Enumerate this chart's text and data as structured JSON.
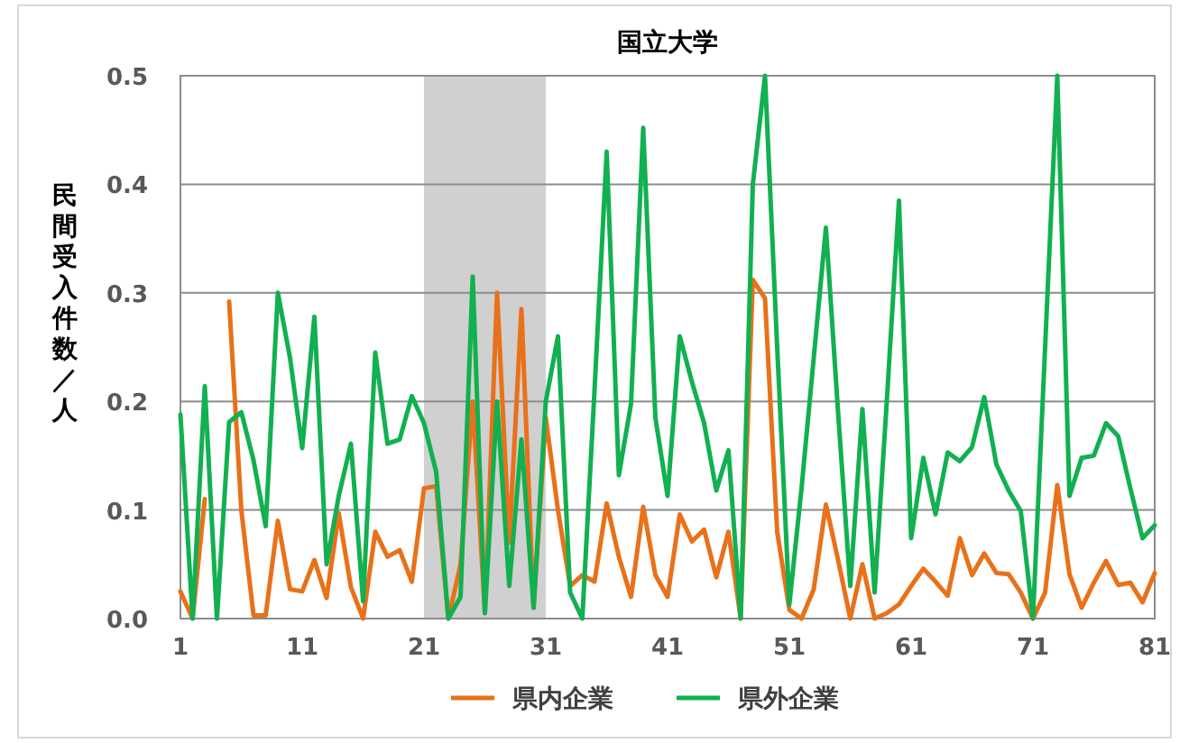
{
  "chart_data": {
    "type": "line",
    "title": "国立大学",
    "ylabel": "民間受入件数／人",
    "x": [
      1,
      2,
      3,
      4,
      5,
      6,
      7,
      8,
      9,
      10,
      11,
      12,
      13,
      14,
      15,
      16,
      17,
      18,
      19,
      20,
      21,
      22,
      23,
      24,
      25,
      26,
      27,
      28,
      29,
      30,
      31,
      32,
      33,
      34,
      35,
      36,
      37,
      38,
      39,
      40,
      41,
      42,
      43,
      44,
      45,
      46,
      47,
      48,
      49,
      50,
      51,
      52,
      53,
      54,
      55,
      56,
      57,
      58,
      59,
      60,
      61,
      62,
      63,
      64,
      65,
      66,
      67,
      68,
      69,
      70,
      71,
      72,
      73,
      74,
      75,
      76,
      77,
      78,
      79,
      80,
      81
    ],
    "series": [
      {
        "name": "県内企業",
        "color": "#e8711a",
        "values": [
          0.025,
          0,
          0.11,
          null,
          0.292,
          0.1,
          0.003,
          0.003,
          0.09,
          0.027,
          0.025,
          0.054,
          0.019,
          0.097,
          0.029,
          0,
          0.08,
          0.057,
          0.063,
          0.034,
          0.12,
          0.122,
          0,
          0.05,
          0.2,
          0.005,
          0.3,
          0.07,
          0.285,
          0.01,
          0.185,
          0.1,
          0.03,
          0.04,
          0.034,
          0.106,
          0.057,
          0.02,
          0.103,
          0.04,
          0.02,
          0.096,
          0.071,
          0.082,
          0.038,
          0.08,
          0,
          0.312,
          0.295,
          0.08,
          0.008,
          0,
          0.027,
          0.105,
          0.054,
          0,
          0.05,
          0,
          0.005,
          0.013,
          0.03,
          0.046,
          0.034,
          0.021,
          0.074,
          0.04,
          0.06,
          0.042,
          0.041,
          0.024,
          0,
          0.024,
          0.123,
          0.041,
          0.01,
          0.033,
          0.053,
          0.031,
          0.033,
          0.015,
          0.042
        ]
      },
      {
        "name": "県外企業",
        "color": "#11b050",
        "values": [
          0.188,
          0,
          0.214,
          0,
          0.181,
          0.19,
          0.146,
          0.085,
          0.3,
          0.24,
          0.157,
          0.278,
          0.05,
          0.113,
          0.161,
          0.016,
          0.245,
          0.161,
          0.165,
          0.205,
          0.18,
          0.135,
          0,
          0.02,
          0.315,
          0.005,
          0.2,
          0.03,
          0.165,
          0.01,
          0.2,
          0.26,
          0.024,
          0,
          0.21,
          0.43,
          0.132,
          0.198,
          0.452,
          0.185,
          0.113,
          0.26,
          0.218,
          0.18,
          0.118,
          0.155,
          0,
          0.4,
          0.5,
          0.25,
          0.013,
          0.12,
          0.24,
          0.36,
          0.19,
          0.03,
          0.193,
          0.024,
          0.2,
          0.385,
          0.074,
          0.148,
          0.096,
          0.153,
          0.145,
          0.158,
          0.204,
          0.142,
          0.118,
          0.099,
          0,
          0.25,
          0.5,
          0.113,
          0.148,
          0.15,
          0.18,
          0.168,
          0.12,
          0.074,
          0.086
        ]
      }
    ],
    "xlim": [
      1,
      81
    ],
    "xticks": [
      1,
      11,
      21,
      31,
      41,
      51,
      61,
      71,
      81
    ],
    "ylim": [
      0,
      0.5
    ],
    "yticks": [
      {
        "value": 0,
        "label": "0.0"
      },
      {
        "value": 0.1,
        "label": "0.1"
      },
      {
        "value": 0.2,
        "label": "0.2"
      },
      {
        "value": 0.3,
        "label": "0.3"
      },
      {
        "value": 0.4,
        "label": "0.4"
      },
      {
        "value": 0.5,
        "label": "0.5"
      }
    ],
    "bands": [
      {
        "axis": "x",
        "from": 21,
        "to": 31,
        "color": "#d0d0d0"
      }
    ],
    "grid": "y",
    "legend": "bottom",
    "marker": "none",
    "line_style": "solid"
  }
}
